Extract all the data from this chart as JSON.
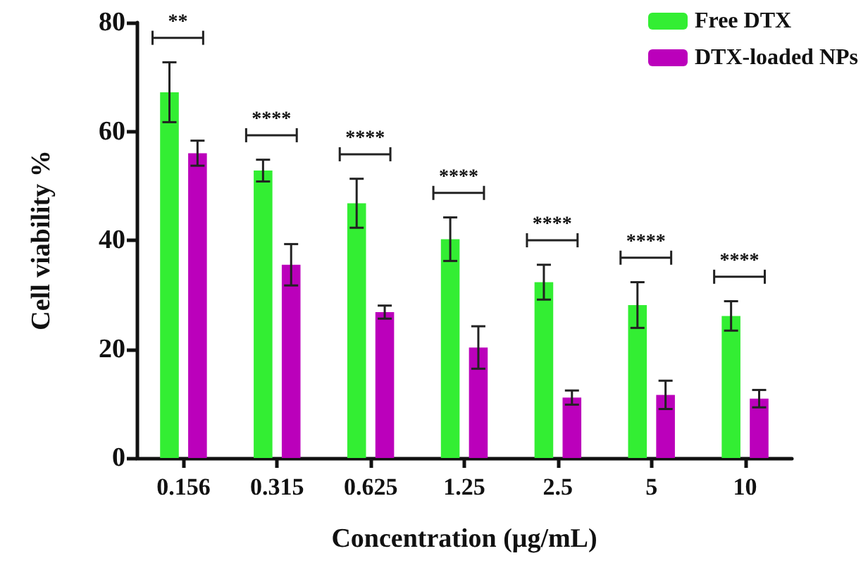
{
  "chart_data": {
    "type": "bar",
    "xlabel": "Concentration (μg/mL)",
    "ylabel": "Cell viability %",
    "categories": [
      "0.156",
      "0.315",
      "0.625",
      "1.25",
      "2.5",
      "5",
      "10"
    ],
    "series": [
      {
        "name": "Free DTX",
        "color": "#33ee33",
        "values": [
          67.2,
          52.8,
          46.8,
          40.2,
          32.3,
          28.1,
          26.1
        ],
        "errors": [
          5.5,
          2,
          4.5,
          4,
          3.2,
          4.2,
          2.7
        ]
      },
      {
        "name": "DTX-loaded NPs",
        "color": "#bb00bb",
        "values": [
          56,
          35.5,
          26.8,
          20.3,
          11.1,
          11.6,
          10.9
        ],
        "errors": [
          2.3,
          3.8,
          1.2,
          3.9,
          1.3,
          2.6,
          1.6
        ]
      }
    ],
    "annotations": [
      "**",
      "****",
      "****",
      "****",
      "****",
      "****",
      "****"
    ],
    "ylim": [
      0,
      80
    ],
    "yticks": [
      0,
      20,
      40,
      60,
      80
    ],
    "grid": false,
    "legend": "top right"
  }
}
